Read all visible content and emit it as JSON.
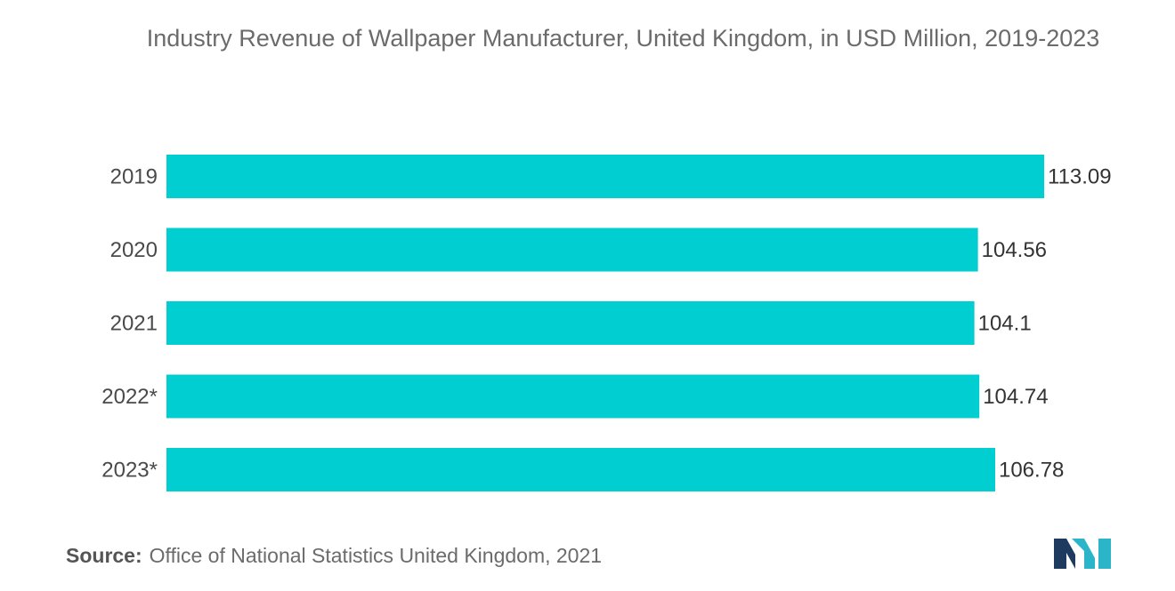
{
  "chart_data": {
    "type": "bar",
    "orientation": "horizontal",
    "title": "Industry Revenue of Wallpaper Manufacturer, United Kingdom, in USD Million, 2019-2023",
    "categories": [
      "2019",
      "2020",
      "2021",
      "2022*",
      "2023*"
    ],
    "values": [
      113.09,
      104.56,
      104.1,
      104.74,
      106.78
    ],
    "value_labels": [
      "113.09",
      "104.56",
      "104.1",
      "104.74",
      "106.78"
    ],
    "xlim": [
      0,
      113.09
    ],
    "grid": false,
    "legend": "none",
    "colors": {
      "bar": "#00CED1"
    }
  },
  "source": {
    "label": "Source:",
    "text": "Office of National Statistics United Kingdom, 2021"
  },
  "logo": {
    "icon": "mordor-intelligence-logo",
    "colors": [
      "#1e3a5f",
      "#2bb5c8"
    ]
  }
}
